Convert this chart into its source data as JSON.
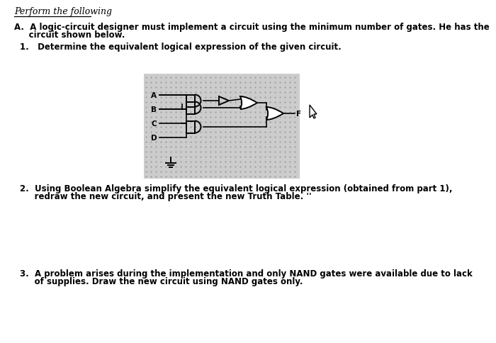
{
  "title": "Perform the following",
  "para_A_1": "A.  A logic-circuit designer must implement a circuit using the minimum number of gates. He has the",
  "para_A_2": "     circuit shown below.",
  "item1": "1.   Determine the equivalent logical expression of the given circuit.",
  "item2_1": "2.  Using Boolean Algebra simplify the equivalent logical expression (obtained from part 1),",
  "item2_2": "     redraw the new circuit, and present the new Truth Table. ''",
  "item3_1": "3.  A problem arises during the implementation and only NAND gates were available due to lack",
  "item3_2": "     of supplies. Draw the new circuit using NAND gates only.",
  "bg_color": "#ffffff",
  "text_color": "#000000",
  "circuit_bg": "#cccccc",
  "inputs": [
    "A",
    "B",
    "C",
    "D"
  ],
  "output": "F",
  "font_size_title": 9,
  "font_size_body": 8.5
}
